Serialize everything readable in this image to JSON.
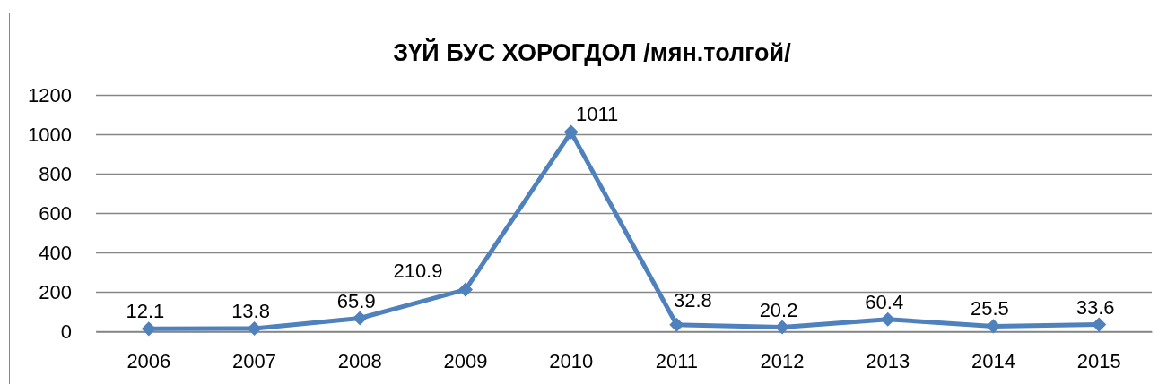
{
  "chart_data": {
    "type": "line",
    "title": "ЗҮЙ БУС ХОРОГДОЛ /мян.толгой/",
    "categories": [
      "2006",
      "2007",
      "2008",
      "2009",
      "2010",
      "2011",
      "2012",
      "2013",
      "2014",
      "2015"
    ],
    "series": [
      {
        "color": "#4f81bd",
        "values": [
          12.1,
          13.8,
          65.9,
          210.9,
          1011,
          32.8,
          20.2,
          60.4,
          25.5,
          33.6
        ]
      }
    ],
    "ylim": [
      0,
      1200
    ],
    "yticks": [
      0,
      200,
      400,
      600,
      800,
      1000,
      1200
    ],
    "grid": "y",
    "marker": "diamond",
    "line_style": "solid",
    "data_labels": true
  }
}
